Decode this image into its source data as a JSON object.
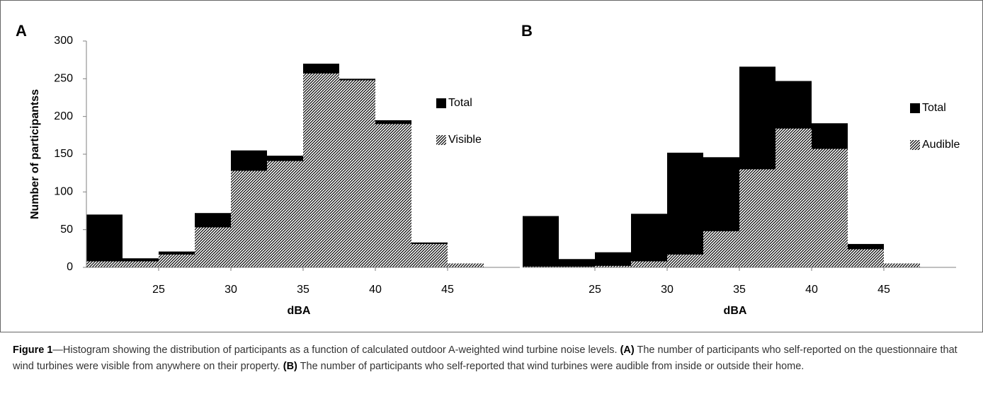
{
  "chart_data": [
    {
      "type": "histogram",
      "panel": "A",
      "xlabel": "dBA",
      "ylabel": "Number of participantss",
      "bins": [
        20,
        22.5,
        25,
        27.5,
        30,
        32.5,
        35,
        37.5,
        40,
        42.5,
        45,
        47.5
      ],
      "series": [
        {
          "name": "Total",
          "color": "#000000",
          "fill": "solid",
          "values": [
            70,
            12,
            21,
            72,
            155,
            148,
            270,
            250,
            195,
            33,
            5
          ]
        },
        {
          "name": "Visible",
          "color": "#000000",
          "fill": "hatch",
          "values": [
            8,
            8,
            17,
            53,
            128,
            141,
            257,
            248,
            190,
            31,
            5
          ]
        }
      ],
      "xlim": [
        20,
        50
      ],
      "xticks": [
        25,
        30,
        35,
        40,
        45
      ],
      "ylim": [
        0,
        300
      ],
      "yticks": [
        0,
        50,
        100,
        150,
        200,
        250,
        300
      ]
    },
    {
      "type": "histogram",
      "panel": "B",
      "xlabel": "dBA",
      "bins": [
        20,
        22.5,
        25,
        27.5,
        30,
        32.5,
        35,
        37.5,
        40,
        42.5,
        45,
        47.5
      ],
      "series": [
        {
          "name": "Total",
          "color": "#000000",
          "fill": "solid",
          "values": [
            68,
            11,
            20,
            71,
            152,
            146,
            266,
            247,
            191,
            31,
            5
          ]
        },
        {
          "name": "Audible",
          "color": "#000000",
          "fill": "hatch",
          "values": [
            1,
            1,
            2,
            8,
            17,
            48,
            130,
            184,
            157,
            24,
            5
          ]
        }
      ],
      "xlim": [
        20,
        50
      ],
      "xticks": [
        25,
        30,
        35,
        40,
        45
      ],
      "ylim": [
        0,
        300
      ]
    }
  ],
  "caption": [
    {
      "text": "Figure 1",
      "bold": true
    },
    {
      "text": "—Histogram showing the distribution of participants as a function of calculated outdoor A-weighted wind turbine noise levels. ",
      "bold": false
    },
    {
      "text": "(A)",
      "bold": true
    },
    {
      "text": " The number of participants who self-reported on the questionnaire that wind turbines were visible from anywhere on their property. ",
      "bold": false
    },
    {
      "text": "(B)",
      "bold": true
    },
    {
      "text": " The number of participants who self-reported that wind turbines were audible from inside or outside their home.",
      "bold": false
    }
  ]
}
